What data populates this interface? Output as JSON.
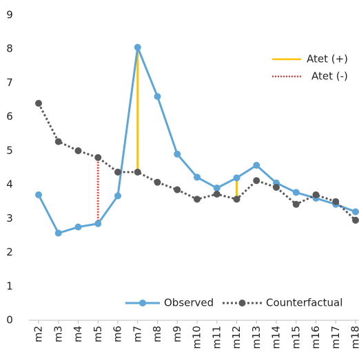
{
  "chart_data": {
    "type": "line",
    "categories": [
      "m2",
      "m3",
      "m4",
      "m5",
      "m6",
      "m7",
      "m8",
      "m9",
      "m10",
      "m11",
      "m12",
      "m13",
      "m14",
      "m15",
      "m16",
      "m17",
      "m18"
    ],
    "series": [
      {
        "name": "Observed",
        "color": "#5ea6d8",
        "dash": "solid",
        "values": [
          3.7,
          2.57,
          2.75,
          2.85,
          3.67,
          8.05,
          6.6,
          4.9,
          4.22,
          3.9,
          4.2,
          4.57,
          4.05,
          3.77,
          3.6,
          3.42,
          3.2
        ]
      },
      {
        "name": "Counterfactual",
        "color": "#595959",
        "dash": "dotted",
        "values": [
          6.4,
          5.27,
          5.0,
          4.8,
          4.37,
          4.37,
          4.07,
          3.85,
          3.57,
          3.72,
          3.57,
          4.12,
          3.92,
          3.42,
          3.7,
          3.5,
          2.95
        ]
      }
    ],
    "gaps": [
      {
        "name": "Atet (+)",
        "color": "#ffc000",
        "dash": "solid",
        "categories": [
          "m7",
          "m12"
        ]
      },
      {
        "name": "Atet (-)",
        "color": "#e8413c",
        "dash": "dotted",
        "categories": [
          "m5"
        ]
      }
    ],
    "ylim": [
      0,
      9
    ],
    "yticks": [
      0,
      1,
      2,
      3,
      4,
      5,
      6,
      7,
      8,
      9
    ],
    "grid": false
  }
}
